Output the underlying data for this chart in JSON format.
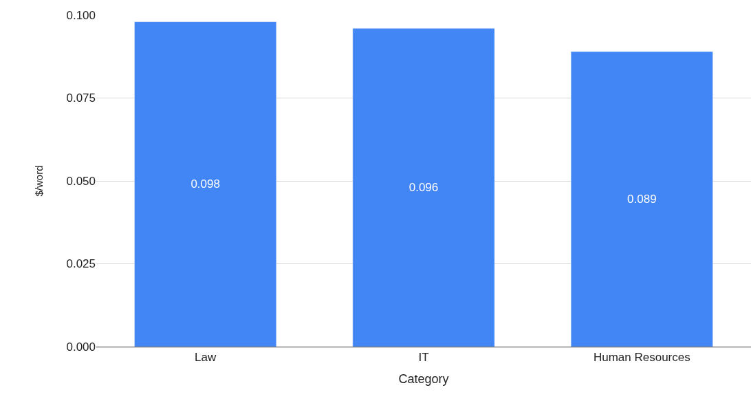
{
  "chart_data": {
    "type": "bar",
    "xlabel": "Category",
    "ylabel": "$/word",
    "categories": [
      "Law",
      "IT",
      "Human Resources"
    ],
    "values": [
      0.098,
      0.096,
      0.089
    ],
    "color": "#4285f4",
    "ylim": [
      0,
      0.1
    ],
    "yticks": [
      {
        "value": 0,
        "label": "0.000"
      },
      {
        "value": 0.025,
        "label": "0.025"
      },
      {
        "value": 0.05,
        "label": "0.050"
      },
      {
        "value": 0.075,
        "label": "0.075"
      },
      {
        "value": 0.1,
        "label": "0.100"
      }
    ],
    "grid": "y",
    "legend": false,
    "data_labels": true
  }
}
